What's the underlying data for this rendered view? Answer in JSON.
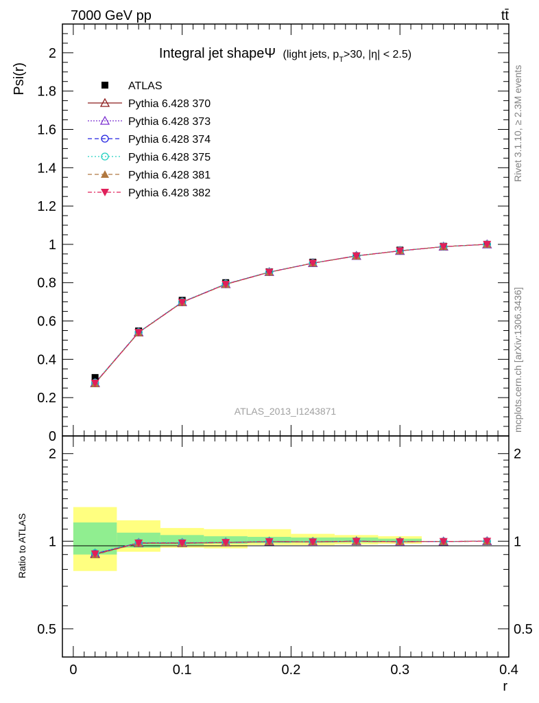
{
  "header": {
    "left": "7000 GeV pp",
    "right": "tt̄"
  },
  "side_labels": {
    "rivet": "Rivet 3.1.10, ≥ 2.3M events",
    "mcplots": "mcplots.cern.ch [arXiv:1306.3436]"
  },
  "chart_data": [
    {
      "type": "line",
      "title_main": "Integral jet shapeΨ",
      "title_sub": "(light jets, p",
      "title_sub_index": "T",
      "title_sub_rest": ">30, |η| < 2.5)",
      "ylabel": "Psi(r)",
      "xlabel": "",
      "watermark": "ATLAS_2013_I1243871",
      "xlim": [
        -0.01,
        0.4
      ],
      "ylim": [
        0,
        2.15
      ],
      "yticks": [
        "0",
        "0.2",
        "0.4",
        "0.6",
        "0.8",
        "1",
        "1.2",
        "1.4",
        "1.6",
        "1.8",
        "2"
      ],
      "legend_position": "top-left",
      "x": [
        0.02,
        0.06,
        0.1,
        0.14,
        0.18,
        0.22,
        0.26,
        0.3,
        0.34,
        0.38
      ],
      "data": {
        "name": "ATLAS",
        "values": [
          0.305,
          0.548,
          0.708,
          0.8,
          0.857,
          0.907,
          0.94,
          0.97,
          0.99,
          1.0
        ]
      },
      "series": [
        {
          "name": "Pythia 6.428 370",
          "color": "#8b1a1a",
          "values": [
            0.275,
            0.54,
            0.698,
            0.792,
            0.855,
            0.902,
            0.94,
            0.966,
            0.988,
            1.0
          ]
        },
        {
          "name": "Pythia 6.428 373",
          "color": "#7b2fd0",
          "values": [
            0.277,
            0.541,
            0.699,
            0.793,
            0.855,
            0.902,
            0.94,
            0.966,
            0.988,
            1.0
          ]
        },
        {
          "name": "Pythia 6.428 374",
          "color": "#2020e0",
          "values": [
            0.276,
            0.54,
            0.698,
            0.792,
            0.855,
            0.902,
            0.94,
            0.966,
            0.988,
            1.0
          ]
        },
        {
          "name": "Pythia 6.428 375",
          "color": "#20d0c0",
          "values": [
            0.278,
            0.542,
            0.7,
            0.794,
            0.856,
            0.903,
            0.94,
            0.967,
            0.988,
            1.0
          ]
        },
        {
          "name": "Pythia 6.428 381",
          "color": "#b07840",
          "values": [
            0.274,
            0.539,
            0.697,
            0.791,
            0.854,
            0.902,
            0.939,
            0.966,
            0.988,
            1.0
          ]
        },
        {
          "name": "Pythia 6.428 382",
          "color": "#e0205a",
          "values": [
            0.276,
            0.54,
            0.698,
            0.792,
            0.855,
            0.902,
            0.94,
            0.966,
            0.988,
            1.0
          ]
        }
      ]
    },
    {
      "type": "line",
      "ylabel": "Ratio to ATLAS",
      "xlabel": "r",
      "xlim": [
        -0.01,
        0.4
      ],
      "ylim": [
        0.4,
        2.3
      ],
      "yticks": [
        "0.5",
        "1",
        "2"
      ],
      "xticks": [
        "0",
        "0.1",
        "0.2",
        "0.3",
        "0.4"
      ],
      "x": [
        0.02,
        0.06,
        0.1,
        0.14,
        0.18,
        0.22,
        0.26,
        0.3,
        0.34,
        0.38
      ],
      "bands": {
        "edges": [
          0.0,
          0.04,
          0.08,
          0.12,
          0.16,
          0.2,
          0.24,
          0.28,
          0.32,
          0.36,
          0.4
        ],
        "stat_lo": [
          0.9,
          0.95,
          0.97,
          0.98,
          0.985,
          0.988,
          0.99,
          0.993,
          1.0,
          1.0
        ],
        "stat_hi": [
          1.16,
          1.07,
          1.05,
          1.04,
          1.035,
          1.03,
          1.03,
          1.02,
          1.0,
          1.0
        ],
        "total_lo": [
          0.79,
          0.92,
          0.95,
          0.945,
          0.97,
          0.97,
          0.975,
          0.98,
          1.0,
          1.0
        ],
        "total_hi": [
          1.31,
          1.18,
          1.11,
          1.1,
          1.1,
          1.06,
          1.05,
          1.04,
          1.0,
          1.0
        ],
        "stat_color": "#90ee90",
        "total_color": "#ffff80"
      },
      "series_ratio": [
        [
          0.902,
          0.985,
          0.985,
          0.99,
          0.997,
          0.995,
          1.0,
          0.996,
          0.998,
          1.0
        ],
        [
          0.908,
          0.987,
          0.987,
          0.991,
          0.998,
          0.995,
          1.0,
          0.996,
          0.998,
          1.0
        ],
        [
          0.905,
          0.986,
          0.986,
          0.99,
          0.997,
          0.995,
          1.0,
          0.996,
          0.998,
          1.0
        ],
        [
          0.911,
          0.989,
          0.989,
          0.992,
          0.999,
          0.996,
          1.0,
          0.997,
          0.998,
          1.0
        ],
        [
          0.898,
          0.984,
          0.984,
          0.989,
          0.996,
          0.994,
          0.999,
          0.996,
          0.998,
          1.0
        ],
        [
          0.905,
          0.986,
          0.986,
          0.99,
          0.997,
          0.995,
          1.0,
          0.996,
          0.998,
          1.0
        ]
      ]
    }
  ]
}
